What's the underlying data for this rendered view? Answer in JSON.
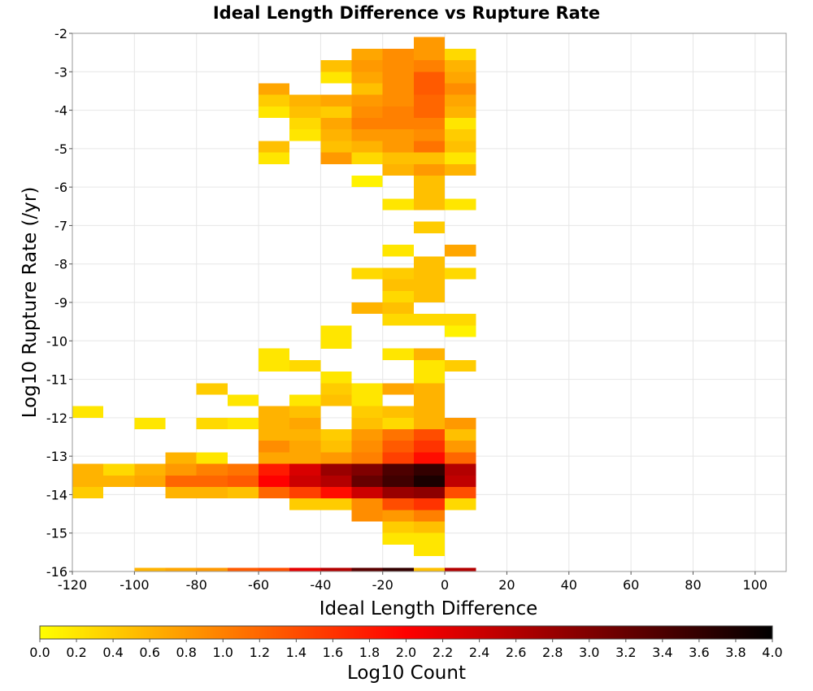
{
  "chart_data": {
    "type": "heatmap",
    "title": "Ideal Length Difference vs Rupture Rate",
    "xlabel": "Ideal Length Difference",
    "ylabel": "Log10 Rupture Rate (/yr)",
    "xlim": [
      -120,
      110
    ],
    "ylim": [
      -16,
      -2
    ],
    "xticks": [
      -120,
      -100,
      -80,
      -60,
      -40,
      -20,
      0,
      20,
      40,
      60,
      80,
      100
    ],
    "yticks": [
      -16,
      -15,
      -14,
      -13,
      -12,
      -11,
      -10,
      -9,
      -8,
      -7,
      -6,
      -5,
      -4,
      -3,
      -2
    ],
    "grid": true,
    "bin_width_x": 10,
    "bin_height_y": 0.3,
    "colorbar": {
      "label": "Log10 Count",
      "min": 0.0,
      "max": 4.0,
      "ticks": [
        "0.0",
        "0.2",
        "0.4",
        "0.6",
        "0.8",
        "1.0",
        "1.2",
        "1.4",
        "1.6",
        "1.8",
        "2.0",
        "2.2",
        "2.4",
        "2.6",
        "2.8",
        "3.0",
        "3.2",
        "3.4",
        "3.6",
        "3.8",
        "4.0"
      ],
      "colormap": "heat",
      "colors": [
        "#ffff00",
        "#ff8000",
        "#ff0000",
        "#800000",
        "#000000"
      ]
    },
    "cells": [
      {
        "x": -5,
        "y": -2.25,
        "v": 0.8
      },
      {
        "x": -25,
        "y": -2.55,
        "v": 0.7
      },
      {
        "x": -15,
        "y": -2.55,
        "v": 0.9
      },
      {
        "x": -5,
        "y": -2.55,
        "v": 0.8
      },
      {
        "x": 5,
        "y": -2.55,
        "v": 0.3
      },
      {
        "x": -35,
        "y": -2.85,
        "v": 0.5
      },
      {
        "x": -25,
        "y": -2.85,
        "v": 0.8
      },
      {
        "x": -15,
        "y": -2.85,
        "v": 0.9
      },
      {
        "x": -5,
        "y": -2.85,
        "v": 1.0
      },
      {
        "x": 5,
        "y": -2.85,
        "v": 0.6
      },
      {
        "x": -35,
        "y": -3.15,
        "v": 0.2
      },
      {
        "x": -25,
        "y": -3.15,
        "v": 0.7
      },
      {
        "x": -15,
        "y": -3.15,
        "v": 0.9
      },
      {
        "x": -5,
        "y": -3.15,
        "v": 1.3
      },
      {
        "x": 5,
        "y": -3.15,
        "v": 0.7
      },
      {
        "x": -55,
        "y": -3.45,
        "v": 0.7
      },
      {
        "x": -25,
        "y": -3.45,
        "v": 0.5
      },
      {
        "x": -15,
        "y": -3.45,
        "v": 0.9
      },
      {
        "x": -5,
        "y": -3.45,
        "v": 1.3
      },
      {
        "x": 5,
        "y": -3.45,
        "v": 0.9
      },
      {
        "x": -55,
        "y": -3.75,
        "v": 0.4
      },
      {
        "x": -45,
        "y": -3.75,
        "v": 0.6
      },
      {
        "x": -35,
        "y": -3.75,
        "v": 0.7
      },
      {
        "x": -25,
        "y": -3.75,
        "v": 0.8
      },
      {
        "x": -15,
        "y": -3.75,
        "v": 0.9
      },
      {
        "x": -5,
        "y": -3.75,
        "v": 1.2
      },
      {
        "x": 5,
        "y": -3.75,
        "v": 0.7
      },
      {
        "x": -55,
        "y": -4.05,
        "v": 0.2
      },
      {
        "x": -45,
        "y": -4.05,
        "v": 0.5
      },
      {
        "x": -35,
        "y": -4.05,
        "v": 0.4
      },
      {
        "x": -25,
        "y": -4.05,
        "v": 0.9
      },
      {
        "x": -15,
        "y": -4.05,
        "v": 1.0
      },
      {
        "x": -5,
        "y": -4.05,
        "v": 1.2
      },
      {
        "x": 5,
        "y": -4.05,
        "v": 0.6
      },
      {
        "x": -45,
        "y": -4.35,
        "v": 0.3
      },
      {
        "x": -35,
        "y": -4.35,
        "v": 0.7
      },
      {
        "x": -25,
        "y": -4.35,
        "v": 1.0
      },
      {
        "x": -15,
        "y": -4.35,
        "v": 1.0
      },
      {
        "x": -5,
        "y": -4.35,
        "v": 1.0
      },
      {
        "x": 5,
        "y": -4.35,
        "v": 0.2
      },
      {
        "x": -45,
        "y": -4.65,
        "v": 0.2
      },
      {
        "x": -35,
        "y": -4.65,
        "v": 0.6
      },
      {
        "x": -25,
        "y": -4.65,
        "v": 0.8
      },
      {
        "x": -15,
        "y": -4.65,
        "v": 0.8
      },
      {
        "x": -5,
        "y": -4.65,
        "v": 0.9
      },
      {
        "x": 5,
        "y": -4.65,
        "v": 0.4
      },
      {
        "x": -55,
        "y": -4.95,
        "v": 0.5
      },
      {
        "x": -35,
        "y": -4.95,
        "v": 0.5
      },
      {
        "x": -25,
        "y": -4.95,
        "v": 0.6
      },
      {
        "x": -15,
        "y": -4.95,
        "v": 0.8
      },
      {
        "x": -5,
        "y": -4.95,
        "v": 1.1
      },
      {
        "x": 5,
        "y": -4.95,
        "v": 0.5
      },
      {
        "x": -55,
        "y": -5.25,
        "v": 0.2
      },
      {
        "x": -35,
        "y": -5.25,
        "v": 0.8
      },
      {
        "x": -25,
        "y": -5.25,
        "v": 0.3
      },
      {
        "x": -15,
        "y": -5.25,
        "v": 0.5
      },
      {
        "x": -5,
        "y": -5.25,
        "v": 0.5
      },
      {
        "x": 5,
        "y": -5.25,
        "v": 0.2
      },
      {
        "x": -15,
        "y": -5.55,
        "v": 0.6
      },
      {
        "x": -5,
        "y": -5.55,
        "v": 0.8
      },
      {
        "x": 5,
        "y": -5.55,
        "v": 0.6
      },
      {
        "x": -25,
        "y": -5.85,
        "v": 0.1
      },
      {
        "x": -5,
        "y": -5.85,
        "v": 0.5
      },
      {
        "x": -5,
        "y": -6.15,
        "v": 0.5
      },
      {
        "x": -15,
        "y": -6.45,
        "v": 0.2
      },
      {
        "x": -5,
        "y": -6.45,
        "v": 0.5
      },
      {
        "x": 5,
        "y": -6.45,
        "v": 0.2
      },
      {
        "x": -5,
        "y": -7.05,
        "v": 0.4
      },
      {
        "x": -15,
        "y": -7.65,
        "v": 0.2
      },
      {
        "x": 5,
        "y": -7.65,
        "v": 0.7
      },
      {
        "x": -5,
        "y": -7.95,
        "v": 0.5
      },
      {
        "x": -25,
        "y": -8.25,
        "v": 0.3
      },
      {
        "x": -15,
        "y": -8.25,
        "v": 0.4
      },
      {
        "x": -5,
        "y": -8.25,
        "v": 0.5
      },
      {
        "x": 5,
        "y": -8.25,
        "v": 0.3
      },
      {
        "x": -15,
        "y": -8.55,
        "v": 0.5
      },
      {
        "x": -5,
        "y": -8.55,
        "v": 0.5
      },
      {
        "x": -15,
        "y": -8.85,
        "v": 0.3
      },
      {
        "x": -5,
        "y": -8.85,
        "v": 0.5
      },
      {
        "x": -25,
        "y": -9.15,
        "v": 0.6
      },
      {
        "x": -15,
        "y": -9.15,
        "v": 0.5
      },
      {
        "x": -15,
        "y": -9.45,
        "v": 0.3
      },
      {
        "x": -5,
        "y": -9.45,
        "v": 0.3
      },
      {
        "x": 5,
        "y": -9.45,
        "v": 0.3
      },
      {
        "x": -35,
        "y": -9.75,
        "v": 0.2
      },
      {
        "x": 5,
        "y": -9.75,
        "v": 0.1
      },
      {
        "x": -35,
        "y": -10.05,
        "v": 0.2
      },
      {
        "x": -55,
        "y": -10.35,
        "v": 0.2
      },
      {
        "x": -15,
        "y": -10.35,
        "v": 0.2
      },
      {
        "x": -5,
        "y": -10.35,
        "v": 0.6
      },
      {
        "x": -55,
        "y": -10.65,
        "v": 0.2
      },
      {
        "x": -45,
        "y": -10.65,
        "v": 0.3
      },
      {
        "x": -5,
        "y": -10.65,
        "v": 0.2
      },
      {
        "x": 5,
        "y": -10.65,
        "v": 0.4
      },
      {
        "x": -35,
        "y": -10.95,
        "v": 0.2
      },
      {
        "x": -5,
        "y": -10.95,
        "v": 0.2
      },
      {
        "x": -75,
        "y": -11.25,
        "v": 0.4
      },
      {
        "x": -35,
        "y": -11.25,
        "v": 0.4
      },
      {
        "x": -25,
        "y": -11.25,
        "v": 0.2
      },
      {
        "x": -15,
        "y": -11.25,
        "v": 0.7
      },
      {
        "x": -5,
        "y": -11.25,
        "v": 0.6
      },
      {
        "x": -65,
        "y": -11.55,
        "v": 0.2
      },
      {
        "x": -45,
        "y": -11.55,
        "v": 0.2
      },
      {
        "x": -35,
        "y": -11.55,
        "v": 0.5
      },
      {
        "x": -25,
        "y": -11.55,
        "v": 0.2
      },
      {
        "x": -5,
        "y": -11.55,
        "v": 0.6
      },
      {
        "x": -115,
        "y": -11.85,
        "v": 0.2
      },
      {
        "x": -55,
        "y": -11.85,
        "v": 0.6
      },
      {
        "x": -45,
        "y": -11.85,
        "v": 0.5
      },
      {
        "x": -25,
        "y": -11.85,
        "v": 0.4
      },
      {
        "x": -15,
        "y": -11.85,
        "v": 0.5
      },
      {
        "x": -5,
        "y": -11.85,
        "v": 0.6
      },
      {
        "x": -95,
        "y": -12.15,
        "v": 0.2
      },
      {
        "x": -75,
        "y": -12.15,
        "v": 0.3
      },
      {
        "x": -65,
        "y": -12.15,
        "v": 0.2
      },
      {
        "x": -55,
        "y": -12.15,
        "v": 0.6
      },
      {
        "x": -45,
        "y": -12.15,
        "v": 0.7
      },
      {
        "x": -25,
        "y": -12.15,
        "v": 0.5
      },
      {
        "x": -15,
        "y": -12.15,
        "v": 0.3
      },
      {
        "x": -5,
        "y": -12.15,
        "v": 0.6
      },
      {
        "x": 5,
        "y": -12.15,
        "v": 0.8
      },
      {
        "x": -55,
        "y": -12.45,
        "v": 0.6
      },
      {
        "x": -45,
        "y": -12.45,
        "v": 0.6
      },
      {
        "x": -35,
        "y": -12.45,
        "v": 0.4
      },
      {
        "x": -25,
        "y": -12.45,
        "v": 0.8
      },
      {
        "x": -15,
        "y": -12.45,
        "v": 1.1
      },
      {
        "x": -5,
        "y": -12.45,
        "v": 1.4
      },
      {
        "x": 5,
        "y": -12.45,
        "v": 0.5
      },
      {
        "x": -55,
        "y": -12.75,
        "v": 0.9
      },
      {
        "x": -45,
        "y": -12.75,
        "v": 0.7
      },
      {
        "x": -35,
        "y": -12.75,
        "v": 0.5
      },
      {
        "x": -25,
        "y": -12.75,
        "v": 0.9
      },
      {
        "x": -15,
        "y": -12.75,
        "v": 1.3
      },
      {
        "x": -5,
        "y": -12.75,
        "v": 1.6
      },
      {
        "x": 5,
        "y": -12.75,
        "v": 0.8
      },
      {
        "x": -85,
        "y": -13.05,
        "v": 0.6
      },
      {
        "x": -75,
        "y": -13.05,
        "v": 0.2
      },
      {
        "x": -55,
        "y": -13.05,
        "v": 0.7
      },
      {
        "x": -45,
        "y": -13.05,
        "v": 0.7
      },
      {
        "x": -35,
        "y": -13.05,
        "v": 0.8
      },
      {
        "x": -25,
        "y": -13.05,
        "v": 1.0
      },
      {
        "x": -15,
        "y": -13.05,
        "v": 1.5
      },
      {
        "x": -5,
        "y": -13.05,
        "v": 1.9
      },
      {
        "x": 5,
        "y": -13.05,
        "v": 1.2
      },
      {
        "x": -115,
        "y": -13.35,
        "v": 0.6
      },
      {
        "x": -105,
        "y": -13.35,
        "v": 0.3
      },
      {
        "x": -95,
        "y": -13.35,
        "v": 0.6
      },
      {
        "x": -85,
        "y": -13.35,
        "v": 0.8
      },
      {
        "x": -75,
        "y": -13.35,
        "v": 1.0
      },
      {
        "x": -65,
        "y": -13.35,
        "v": 1.1
      },
      {
        "x": -55,
        "y": -13.35,
        "v": 1.8
      },
      {
        "x": -45,
        "y": -13.35,
        "v": 2.3
      },
      {
        "x": -35,
        "y": -13.35,
        "v": 2.8
      },
      {
        "x": -25,
        "y": -13.35,
        "v": 3.0
      },
      {
        "x": -15,
        "y": -13.35,
        "v": 3.4
      },
      {
        "x": -5,
        "y": -13.35,
        "v": 3.6
      },
      {
        "x": 5,
        "y": -13.35,
        "v": 2.6
      },
      {
        "x": -115,
        "y": -13.65,
        "v": 0.6
      },
      {
        "x": -105,
        "y": -13.65,
        "v": 0.6
      },
      {
        "x": -95,
        "y": -13.65,
        "v": 0.7
      },
      {
        "x": -85,
        "y": -13.65,
        "v": 1.2
      },
      {
        "x": -75,
        "y": -13.65,
        "v": 1.2
      },
      {
        "x": -65,
        "y": -13.65,
        "v": 1.3
      },
      {
        "x": -55,
        "y": -13.65,
        "v": 2.0
      },
      {
        "x": -45,
        "y": -13.65,
        "v": 2.4
      },
      {
        "x": -35,
        "y": -13.65,
        "v": 2.6
      },
      {
        "x": -25,
        "y": -13.65,
        "v": 3.2
      },
      {
        "x": -15,
        "y": -13.65,
        "v": 3.5
      },
      {
        "x": -5,
        "y": -13.65,
        "v": 3.8
      },
      {
        "x": 5,
        "y": -13.65,
        "v": 2.5
      },
      {
        "x": -115,
        "y": -13.95,
        "v": 0.4
      },
      {
        "x": -85,
        "y": -13.95,
        "v": 0.6
      },
      {
        "x": -75,
        "y": -13.95,
        "v": 0.6
      },
      {
        "x": -65,
        "y": -13.95,
        "v": 0.5
      },
      {
        "x": -55,
        "y": -13.95,
        "v": 1.2
      },
      {
        "x": -45,
        "y": -13.95,
        "v": 1.5
      },
      {
        "x": -35,
        "y": -13.95,
        "v": 1.9
      },
      {
        "x": -25,
        "y": -13.95,
        "v": 2.4
      },
      {
        "x": -15,
        "y": -13.95,
        "v": 2.8
      },
      {
        "x": -5,
        "y": -13.95,
        "v": 2.9
      },
      {
        "x": 5,
        "y": -13.95,
        "v": 1.4
      },
      {
        "x": -45,
        "y": -14.25,
        "v": 0.4
      },
      {
        "x": -35,
        "y": -14.25,
        "v": 0.4
      },
      {
        "x": -25,
        "y": -14.25,
        "v": 0.9
      },
      {
        "x": -15,
        "y": -14.25,
        "v": 1.4
      },
      {
        "x": -5,
        "y": -14.25,
        "v": 1.6
      },
      {
        "x": 5,
        "y": -14.25,
        "v": 0.3
      },
      {
        "x": -25,
        "y": -14.55,
        "v": 0.9
      },
      {
        "x": -15,
        "y": -14.55,
        "v": 0.8
      },
      {
        "x": -5,
        "y": -14.55,
        "v": 1.0
      },
      {
        "x": -15,
        "y": -14.85,
        "v": 0.4
      },
      {
        "x": -5,
        "y": -14.85,
        "v": 0.5
      },
      {
        "x": -15,
        "y": -15.15,
        "v": 0.2
      },
      {
        "x": -5,
        "y": -15.15,
        "v": 0.2
      },
      {
        "x": -5,
        "y": -15.45,
        "v": 0.2
      },
      {
        "x": -5,
        "y": -16.05,
        "v": 0.5
      },
      {
        "x": -95,
        "y": -16.05,
        "v": 0.6
      },
      {
        "x": -85,
        "y": -16.05,
        "v": 0.7
      },
      {
        "x": -75,
        "y": -16.05,
        "v": 0.8
      },
      {
        "x": -65,
        "y": -16.05,
        "v": 1.3
      },
      {
        "x": -55,
        "y": -16.05,
        "v": 1.4
      },
      {
        "x": -45,
        "y": -16.05,
        "v": 2.2
      },
      {
        "x": -35,
        "y": -16.05,
        "v": 2.6
      },
      {
        "x": -25,
        "y": -16.05,
        "v": 3.3
      },
      {
        "x": -15,
        "y": -16.05,
        "v": 3.6
      },
      {
        "x": 5,
        "y": -16.05,
        "v": 2.6
      }
    ]
  }
}
